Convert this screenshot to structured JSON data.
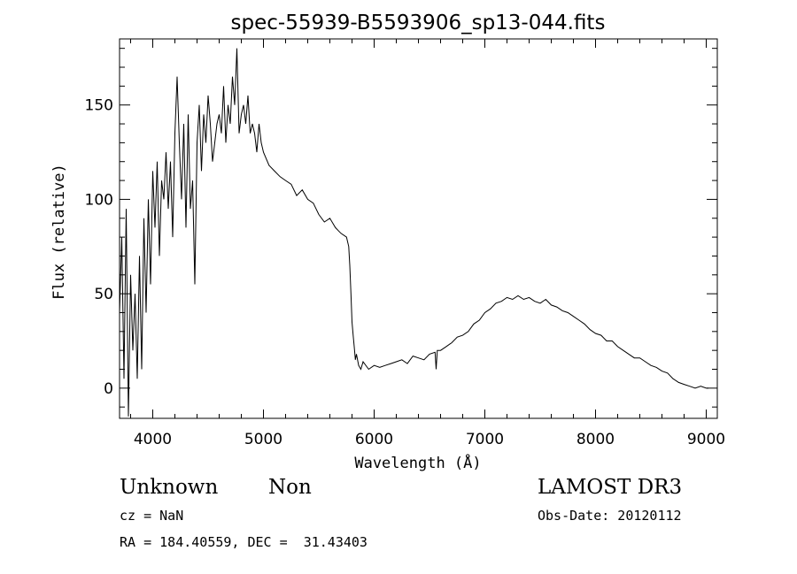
{
  "chart_data": {
    "type": "line",
    "title": "spec-55939-B5593906_sp13-044.fits",
    "xlabel": "Wavelength (Å)",
    "ylabel": "Flux (relative)",
    "xlim": [
      3700,
      9100
    ],
    "ylim": [
      -16,
      185
    ],
    "xticks": [
      4000,
      5000,
      6000,
      7000,
      8000,
      9000
    ],
    "yticks": [
      0,
      50,
      100,
      150
    ],
    "grid": false,
    "legend": "none",
    "line_color": "#000000",
    "series": [
      {
        "x": [
          3700,
          3720,
          3740,
          3760,
          3780,
          3800,
          3820,
          3840,
          3860,
          3880,
          3900,
          3920,
          3940,
          3960,
          3980,
          4000,
          4020,
          4040,
          4060,
          4080,
          4100,
          4120,
          4140,
          4160,
          4180,
          4200,
          4220,
          4240,
          4260,
          4280,
          4300,
          4320,
          4340,
          4360,
          4380,
          4400,
          4420,
          4440,
          4460,
          4480,
          4500,
          4520,
          4540,
          4560,
          4580,
          4600,
          4620,
          4640,
          4660,
          4680,
          4700,
          4720,
          4740,
          4760,
          4780,
          4800,
          4820,
          4840,
          4860,
          4880,
          4900,
          4920,
          4940,
          4960,
          4980,
          5000,
          5050,
          5100,
          5150,
          5200,
          5250,
          5300,
          5350,
          5400,
          5450,
          5500,
          5550,
          5600,
          5650,
          5700,
          5750,
          5770,
          5780,
          5790,
          5800,
          5810,
          5820,
          5830,
          5840,
          5860,
          5880,
          5900,
          5950,
          6000,
          6050,
          6100,
          6150,
          6200,
          6250,
          6300,
          6350,
          6400,
          6450,
          6500,
          6550,
          6560,
          6570,
          6600,
          6650,
          6700,
          6750,
          6800,
          6850,
          6900,
          6950,
          7000,
          7050,
          7100,
          7150,
          7200,
          7250,
          7300,
          7350,
          7400,
          7450,
          7500,
          7550,
          7600,
          7650,
          7700,
          7750,
          7800,
          7850,
          7900,
          7950,
          8000,
          8050,
          8100,
          8150,
          8200,
          8250,
          8300,
          8350,
          8400,
          8450,
          8500,
          8550,
          8600,
          8650,
          8700,
          8750,
          8800,
          8850,
          8900,
          8950,
          9000,
          9020
        ],
        "y": [
          40,
          80,
          5,
          95,
          -15,
          60,
          20,
          50,
          5,
          70,
          10,
          90,
          40,
          100,
          55,
          115,
          85,
          120,
          70,
          110,
          100,
          125,
          95,
          120,
          80,
          135,
          165,
          130,
          100,
          140,
          85,
          145,
          95,
          110,
          55,
          130,
          150,
          115,
          145,
          130,
          155,
          140,
          120,
          130,
          140,
          145,
          135,
          160,
          130,
          150,
          140,
          165,
          150,
          180,
          135,
          145,
          150,
          140,
          155,
          135,
          140,
          135,
          125,
          140,
          130,
          125,
          118,
          115,
          112,
          110,
          108,
          102,
          105,
          100,
          98,
          92,
          88,
          90,
          85,
          82,
          80,
          75,
          65,
          50,
          35,
          28,
          22,
          15,
          18,
          12,
          10,
          14,
          10,
          12,
          11,
          12,
          13,
          14,
          15,
          13,
          17,
          16,
          15,
          18,
          19,
          10,
          20,
          20,
          22,
          24,
          27,
          28,
          30,
          34,
          36,
          40,
          42,
          45,
          46,
          48,
          47,
          49,
          47,
          48,
          46,
          45,
          47,
          44,
          43,
          41,
          40,
          38,
          36,
          34,
          31,
          29,
          28,
          25,
          25,
          22,
          20,
          18,
          16,
          16,
          14,
          12,
          11,
          9,
          8,
          5,
          3,
          2,
          1,
          0,
          1,
          0,
          0
        ]
      }
    ]
  },
  "info": {
    "class": "Unknown",
    "subclass": "Non",
    "survey": "LAMOST DR3",
    "cz": "cz = NaN",
    "obs_date": "Obs-Date: 20120112",
    "coords": "RA = 184.40559, DEC =  31.43403"
  }
}
